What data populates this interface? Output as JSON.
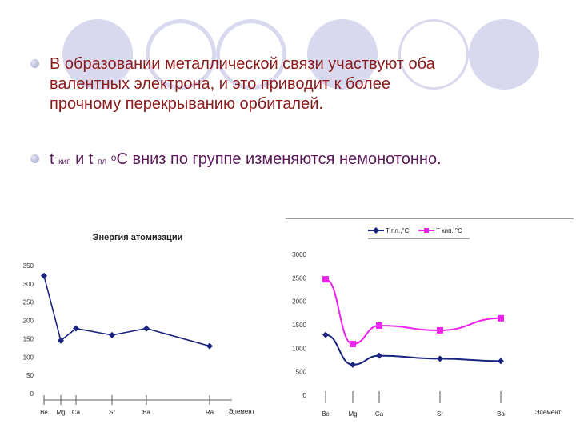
{
  "bullets": {
    "b1_line1": "В образовании металлической связи участвуют оба",
    "b1_line2": "валентных электрона, и это приводит к более",
    "b1_line3": "прочному перекрыванию орбиталей.",
    "b2_t1": "t",
    "b2_sub1": "кип",
    "b2_and": "и t",
    "b2_sub2": "пл",
    "b2_sup": "о",
    "b2_rest": "С вниз по группе изменяются немонотонно."
  },
  "colors": {
    "slide_text": "#8b1a1a",
    "decor": "#d8d8ee",
    "series_dark": "#1a237e",
    "series_magenta": "#ee22ee"
  },
  "chart_data": [
    {
      "type": "line",
      "title": "Энергия атомизации",
      "ylabel": "",
      "xlabel": "Элемент",
      "categories": [
        "Be",
        "Mg",
        "Ca",
        "Sr",
        "Ba",
        "Ra"
      ],
      "yticks": [
        "0",
        "50",
        "100",
        "150",
        "200",
        "250",
        "300",
        "350"
      ],
      "ylim": [
        0,
        350
      ],
      "series": [
        {
          "name": "",
          "values": [
            322,
            145,
            178,
            160,
            178,
            130
          ]
        }
      ]
    },
    {
      "type": "line",
      "title": "",
      "xlabel": "Элемент",
      "categories": [
        "Be",
        "Mg",
        "Ca",
        "Sr",
        "Ba"
      ],
      "yticks": [
        "0",
        "500",
        "1000",
        "1500",
        "2000",
        "2500",
        "3000"
      ],
      "ylim": [
        0,
        3000
      ],
      "legend": "top",
      "series": [
        {
          "name": "T пл.,°С",
          "values": [
            1287,
            650,
            842,
            777,
            727
          ]
        },
        {
          "name": "Т кип.,°С",
          "values": [
            2470,
            1090,
            1484,
            1382,
            1640
          ]
        }
      ]
    }
  ]
}
